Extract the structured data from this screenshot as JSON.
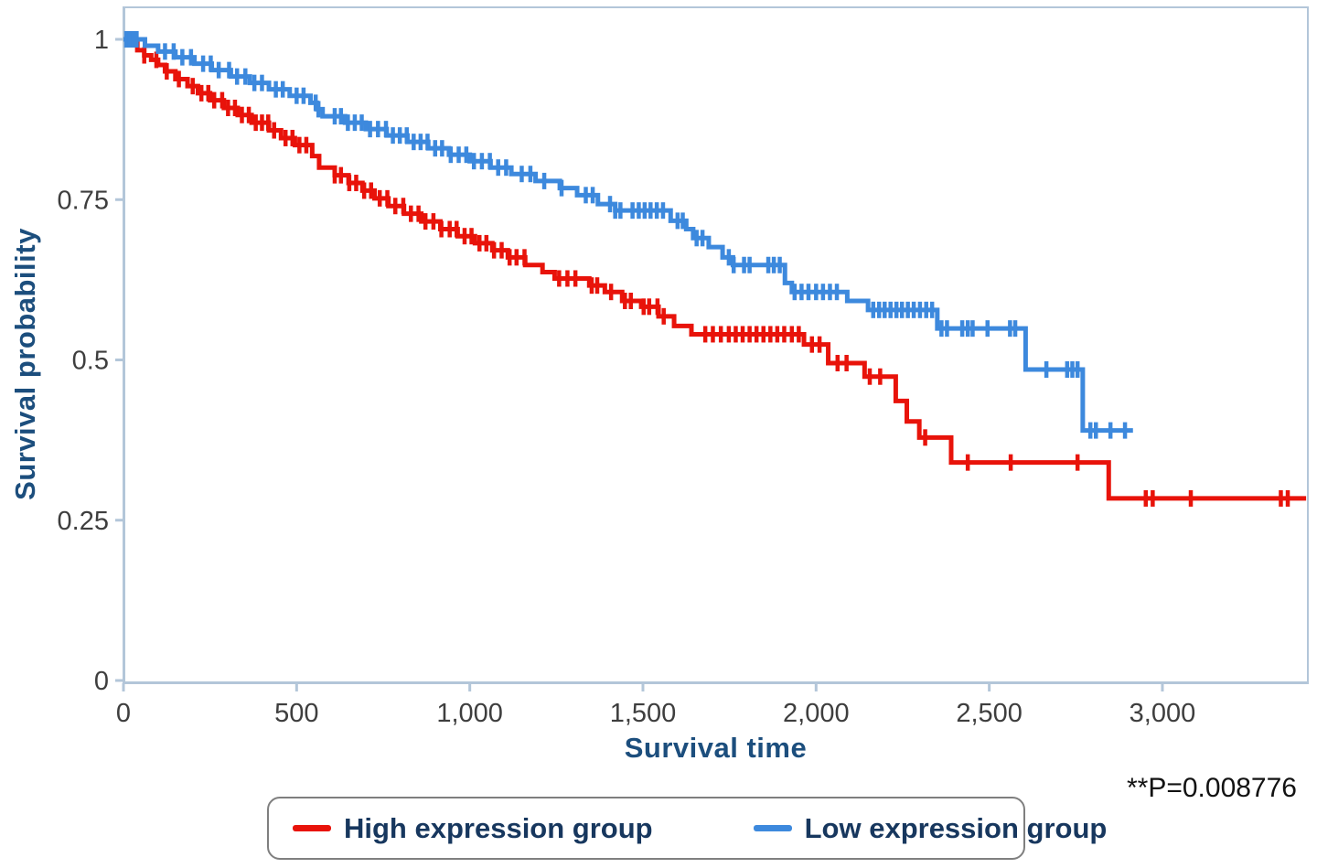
{
  "figure": {
    "y_axis_title": "Survival probability",
    "x_axis_title": "Survival time",
    "annotation": "**P=0.008776"
  },
  "legend": {
    "items": [
      {
        "label": "High expression group",
        "color": "#e8130a"
      },
      {
        "label": "Low expression group",
        "color": "#3d89dd"
      }
    ]
  },
  "chart_data": {
    "type": "line",
    "subtype": "kaplan-meier-step",
    "title": "",
    "xlabel": "Survival time",
    "ylabel": "Survival probability",
    "xlim": [
      0,
      3420
    ],
    "ylim": [
      0,
      1
    ],
    "grid": false,
    "legend_position": "bottom",
    "p_value_annotation": "**P=0.008776",
    "x_ticks": [
      {
        "value": 0,
        "label": "0"
      },
      {
        "value": 500,
        "label": "500"
      },
      {
        "value": 1000,
        "label": "1,000"
      },
      {
        "value": 1500,
        "label": "1,500"
      },
      {
        "value": 2000,
        "label": "2,000"
      },
      {
        "value": 2500,
        "label": "2,500"
      },
      {
        "value": 3000,
        "label": "3,000"
      }
    ],
    "y_ticks": [
      {
        "value": 0,
        "label": "0"
      },
      {
        "value": 0.25,
        "label": "0.25"
      },
      {
        "value": 0.5,
        "label": "0.5"
      },
      {
        "value": 0.75,
        "label": "0.75"
      },
      {
        "value": 1,
        "label": "1"
      }
    ],
    "plot_style": {
      "frame_color": "#b3c6d9",
      "tick_label_color": "#3e3e3e",
      "axis_title_color": "#1c4e7d",
      "legend_text_color": "#17375e",
      "background": "#ffffff"
    },
    "series": [
      {
        "name": "High expression group",
        "color": "#e8130a",
        "start": [
          0,
          1.0
        ],
        "end_time": 3415,
        "steps": [
          [
            15,
            0.993
          ],
          [
            40,
            0.983
          ],
          [
            60,
            0.975
          ],
          [
            80,
            0.968
          ],
          [
            100,
            0.96
          ],
          [
            120,
            0.95
          ],
          [
            150,
            0.938
          ],
          [
            185,
            0.927
          ],
          [
            215,
            0.916
          ],
          [
            250,
            0.905
          ],
          [
            290,
            0.893
          ],
          [
            330,
            0.882
          ],
          [
            370,
            0.87
          ],
          [
            420,
            0.858
          ],
          [
            455,
            0.846
          ],
          [
            495,
            0.835
          ],
          [
            545,
            0.818
          ],
          [
            565,
            0.8
          ],
          [
            610,
            0.788
          ],
          [
            650,
            0.776
          ],
          [
            690,
            0.764
          ],
          [
            725,
            0.752
          ],
          [
            765,
            0.74
          ],
          [
            810,
            0.728
          ],
          [
            860,
            0.716
          ],
          [
            915,
            0.704
          ],
          [
            965,
            0.693
          ],
          [
            1015,
            0.682
          ],
          [
            1065,
            0.671
          ],
          [
            1110,
            0.66
          ],
          [
            1160,
            0.648
          ],
          [
            1210,
            0.637
          ],
          [
            1245,
            0.627
          ],
          [
            1345,
            0.616
          ],
          [
            1390,
            0.606
          ],
          [
            1440,
            0.592
          ],
          [
            1495,
            0.583
          ],
          [
            1545,
            0.568
          ],
          [
            1590,
            0.553
          ],
          [
            1640,
            0.54
          ],
          [
            1965,
            0.524
          ],
          [
            2035,
            0.495
          ],
          [
            2140,
            0.474
          ],
          [
            2230,
            0.436
          ],
          [
            2262,
            0.404
          ],
          [
            2298,
            0.379
          ],
          [
            2390,
            0.34
          ],
          [
            2845,
            0.284
          ]
        ],
        "censor_times": [
          60,
          95,
          125,
          160,
          200,
          225,
          245,
          262,
          285,
          302,
          322,
          342,
          362,
          382,
          400,
          418,
          435,
          468,
          488,
          508,
          528,
          610,
          628,
          652,
          672,
          695,
          715,
          740,
          762,
          785,
          808,
          830,
          852,
          872,
          895,
          918,
          942,
          962,
          985,
          1005,
          1028,
          1048,
          1070,
          1092,
          1115,
          1135,
          1158,
          1258,
          1282,
          1305,
          1352,
          1368,
          1408,
          1448,
          1465,
          1502,
          1518,
          1542,
          1560,
          1680,
          1702,
          1725,
          1748,
          1768,
          1788,
          1808,
          1828,
          1848,
          1868,
          1888,
          1908,
          1930,
          1950,
          1988,
          2010,
          2062,
          2088,
          2155,
          2185,
          2315,
          2438,
          2562,
          2755,
          2952,
          2972,
          3082,
          3342,
          3362
        ]
      },
      {
        "name": "Low expression group",
        "color": "#3d89dd",
        "start": [
          0,
          1.0
        ],
        "end_time": 2915,
        "steps": [
          [
            62,
            0.99
          ],
          [
            100,
            0.981
          ],
          [
            150,
            0.972
          ],
          [
            205,
            0.962
          ],
          [
            255,
            0.952
          ],
          [
            310,
            0.942
          ],
          [
            365,
            0.932
          ],
          [
            420,
            0.922
          ],
          [
            480,
            0.912
          ],
          [
            540,
            0.901
          ],
          [
            558,
            0.891
          ],
          [
            575,
            0.88
          ],
          [
            640,
            0.87
          ],
          [
            700,
            0.86
          ],
          [
            760,
            0.85
          ],
          [
            820,
            0.84
          ],
          [
            880,
            0.83
          ],
          [
            940,
            0.82
          ],
          [
            1000,
            0.81
          ],
          [
            1060,
            0.8
          ],
          [
            1120,
            0.79
          ],
          [
            1190,
            0.779
          ],
          [
            1260,
            0.768
          ],
          [
            1310,
            0.757
          ],
          [
            1370,
            0.743
          ],
          [
            1420,
            0.733
          ],
          [
            1580,
            0.717
          ],
          [
            1625,
            0.704
          ],
          [
            1645,
            0.69
          ],
          [
            1690,
            0.676
          ],
          [
            1730,
            0.66
          ],
          [
            1760,
            0.648
          ],
          [
            1910,
            0.62
          ],
          [
            1930,
            0.606
          ],
          [
            2090,
            0.592
          ],
          [
            2150,
            0.578
          ],
          [
            2350,
            0.549
          ],
          [
            2605,
            0.485
          ],
          [
            2770,
            0.39
          ]
        ],
        "censor_times": [
          8,
          18,
          28,
          38,
          120,
          145,
          170,
          195,
          230,
          252,
          275,
          305,
          328,
          352,
          378,
          400,
          440,
          460,
          500,
          520,
          555,
          563,
          610,
          628,
          648,
          668,
          688,
          712,
          735,
          758,
          778,
          798,
          818,
          838,
          858,
          878,
          900,
          920,
          945,
          968,
          990,
          1012,
          1035,
          1058,
          1082,
          1105,
          1150,
          1175,
          1215,
          1265,
          1335,
          1355,
          1405,
          1420,
          1435,
          1470,
          1488,
          1505,
          1522,
          1540,
          1558,
          1600,
          1615,
          1655,
          1672,
          1748,
          1762,
          1792,
          1808,
          1862,
          1878,
          1895,
          1938,
          1958,
          1978,
          2000,
          2020,
          2040,
          2060,
          2165,
          2182,
          2198,
          2215,
          2232,
          2248,
          2265,
          2282,
          2300,
          2318,
          2335,
          2362,
          2378,
          2422,
          2438,
          2452,
          2495,
          2560,
          2575,
          2665,
          2725,
          2740,
          2755,
          2792,
          2808,
          2850,
          2892
        ]
      }
    ]
  }
}
